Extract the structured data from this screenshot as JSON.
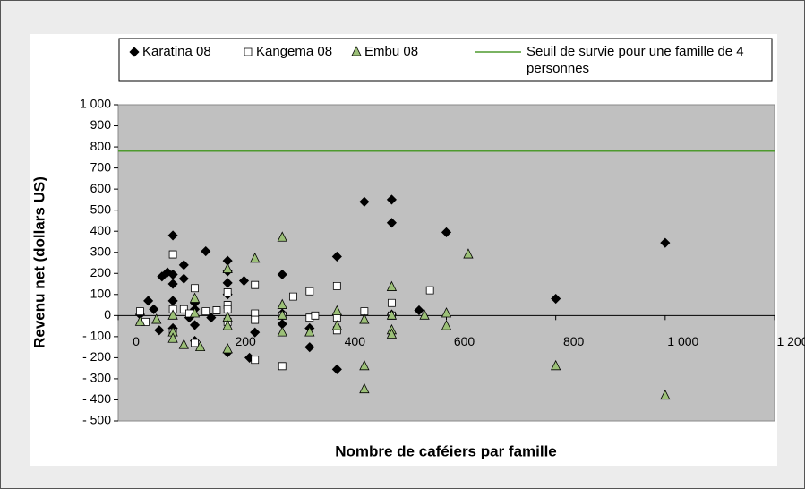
{
  "chart_data": {
    "type": "scatter",
    "xlabel": "Nombre de caféiers par famille",
    "ylabel": "Revenu net (dollars US)",
    "xlim": [
      0,
      1200
    ],
    "ylim": [
      -500,
      1000
    ],
    "xticks": [
      0,
      200,
      400,
      600,
      800,
      {
        "value": 1000,
        "label": "1 000"
      },
      {
        "value": 1200,
        "label": "1 200"
      }
    ],
    "yticks": [
      {
        "value": -500,
        "label": "- 500"
      },
      {
        "value": -400,
        "label": "- 400"
      },
      {
        "value": -300,
        "label": "- 300"
      },
      {
        "value": -200,
        "label": "- 200"
      },
      {
        "value": -100,
        "label": "- 100"
      },
      0,
      100,
      200,
      300,
      400,
      500,
      600,
      700,
      800,
      900,
      {
        "value": 1000,
        "label": "1 000"
      }
    ],
    "legend": "top",
    "series": [
      {
        "name": "Karatina 08",
        "marker": "diamond",
        "color": "#000000",
        "x": [
          40,
          55,
          65,
          75,
          80,
          90,
          100,
          100,
          100,
          100,
          100,
          120,
          120,
          130,
          140,
          140,
          140,
          140,
          160,
          170,
          200,
          200,
          200,
          200,
          200,
          230,
          240,
          250,
          300,
          300,
          300,
          350,
          350,
          400,
          400,
          450,
          500,
          500,
          500,
          550,
          600,
          800,
          1000
        ],
        "values": [
          5,
          70,
          30,
          -70,
          185,
          205,
          195,
          380,
          150,
          70,
          -60,
          240,
          175,
          -10,
          60,
          30,
          -45,
          -120,
          305,
          -10,
          260,
          210,
          155,
          100,
          -175,
          165,
          -200,
          -80,
          195,
          10,
          -40,
          -150,
          -60,
          280,
          -255,
          540,
          550,
          440,
          5,
          25,
          395,
          80,
          345
        ]
      },
      {
        "name": "Kangema 08",
        "marker": "square",
        "color": "#ffffff",
        "x": [
          40,
          50,
          100,
          100,
          100,
          120,
          130,
          140,
          140,
          160,
          180,
          200,
          200,
          200,
          200,
          250,
          250,
          250,
          250,
          300,
          300,
          320,
          350,
          350,
          360,
          400,
          400,
          400,
          450,
          500,
          500,
          570
        ],
        "values": [
          20,
          -30,
          290,
          30,
          -80,
          30,
          10,
          130,
          -130,
          20,
          25,
          110,
          50,
          30,
          -30,
          145,
          10,
          -20,
          -210,
          0,
          -240,
          90,
          115,
          -10,
          0,
          140,
          -10,
          -70,
          20,
          60,
          0,
          120
        ]
      },
      {
        "name": "Embu 08",
        "marker": "triangle",
        "color": "#9cc078",
        "x": [
          40,
          70,
          100,
          100,
          100,
          120,
          140,
          140,
          150,
          200,
          200,
          200,
          200,
          250,
          300,
          300,
          300,
          300,
          350,
          400,
          400,
          450,
          450,
          450,
          500,
          500,
          500,
          500,
          560,
          600,
          600,
          640,
          800,
          1000
        ],
        "values": [
          -30,
          -20,
          0,
          -80,
          -110,
          -140,
          80,
          10,
          -150,
          220,
          -10,
          -50,
          -160,
          270,
          370,
          50,
          0,
          -80,
          -80,
          20,
          -50,
          -20,
          -240,
          -350,
          135,
          0,
          -70,
          -90,
          0,
          10,
          -50,
          290,
          -240,
          -380
        ]
      }
    ],
    "reference_line": {
      "name": "Seuil de survie pour une famille de 4 personnes",
      "value": 780,
      "color": "#4e9a2e"
    }
  }
}
